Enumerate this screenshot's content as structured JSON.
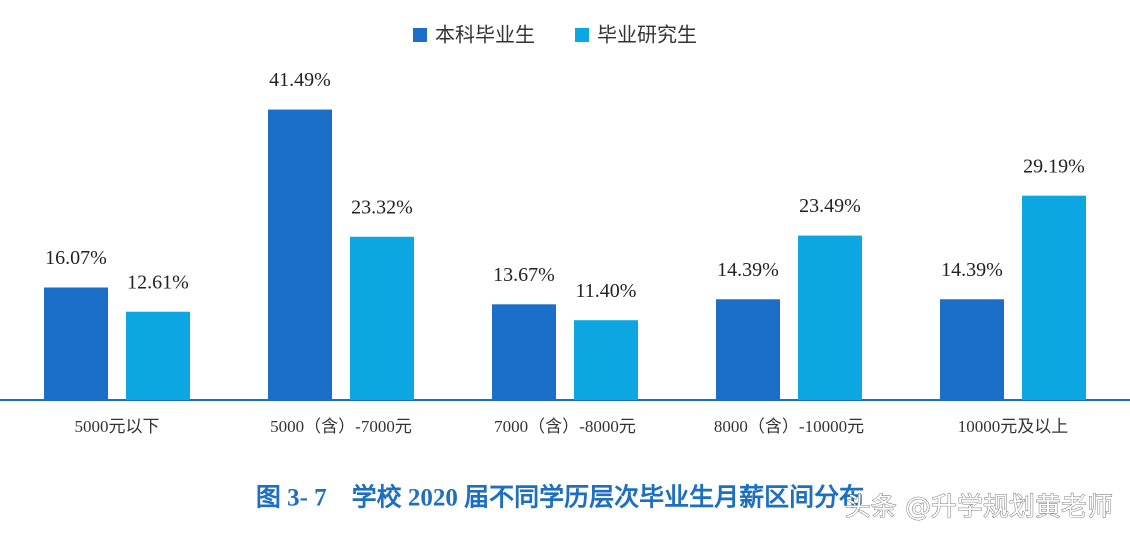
{
  "chart_data": {
    "type": "bar",
    "title": "图 3- 7　学校 2020 届不同学历层次毕业生月薪区间分布",
    "categories": [
      "5000元以下",
      "5000（含）-7000元",
      "7000（含）-8000元",
      "8000（含）-10000元",
      "10000元及以上"
    ],
    "series": [
      {
        "name": "本科毕业生",
        "color": "#1b6fc8",
        "values": [
          16.07,
          41.49,
          13.67,
          14.39,
          14.39
        ],
        "value_labels": [
          "16.07%",
          "41.49%",
          "13.67%",
          "14.39%",
          "14.39%"
        ]
      },
      {
        "name": "毕业研究生",
        "color": "#0ca6e0",
        "values": [
          12.61,
          23.32,
          11.4,
          23.49,
          29.19
        ],
        "value_labels": [
          "12.61%",
          "23.32%",
          "11.40%",
          "23.49%",
          "29.19%"
        ]
      }
    ]
  },
  "watermark": "头条 @升学规划黄老师"
}
